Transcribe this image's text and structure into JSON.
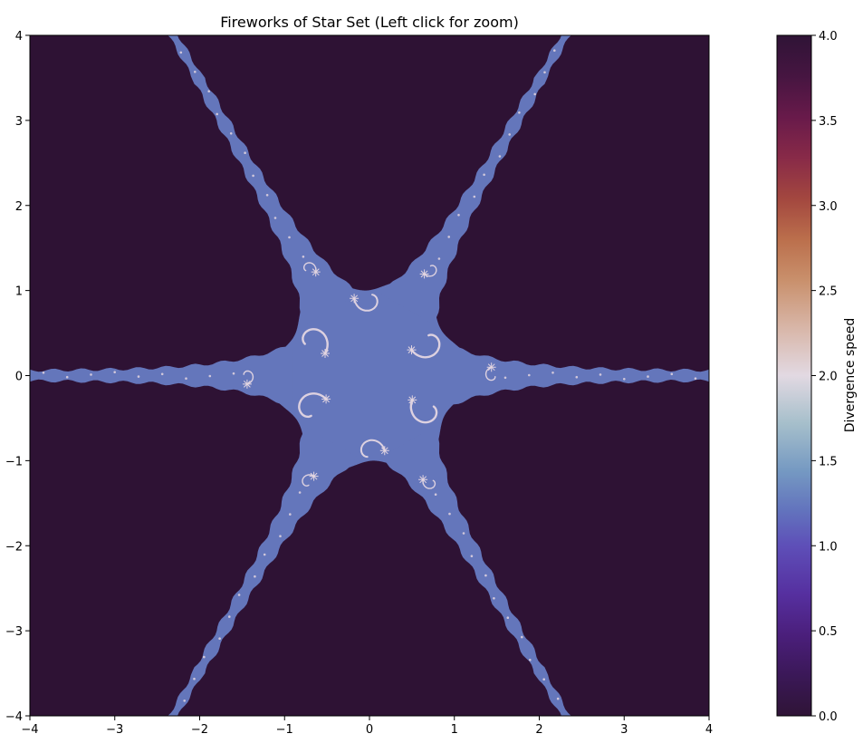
{
  "chart_data": {
    "type": "heatmap",
    "title": "Fireworks of Star Set (Left click for zoom)",
    "xlabel": "",
    "ylabel": "",
    "xlim": [
      -4,
      4
    ],
    "ylim": [
      -4,
      4
    ],
    "x_ticks": [
      -4,
      -3,
      -2,
      -1,
      0,
      1,
      2,
      3,
      4
    ],
    "y_ticks": [
      -4,
      -3,
      -2,
      -1,
      0,
      1,
      2,
      3,
      4
    ],
    "x_tick_labels": [
      "−4",
      "−3",
      "−2",
      "−1",
      "0",
      "1",
      "2",
      "3",
      "4"
    ],
    "y_tick_labels": [
      "−4",
      "−3",
      "−2",
      "−1",
      "0",
      "1",
      "2",
      "3",
      "4"
    ],
    "grid": false,
    "symmetry": "6-fold star with arms along 0°, 60°, 120°, 180°, 240°, 300°",
    "regions": [
      {
        "name": "background",
        "divergence_speed": 0.0
      },
      {
        "name": "star set",
        "divergence_speed": 1.0
      },
      {
        "name": "filament highlights",
        "divergence_speed": 2.0
      }
    ],
    "colorbar": {
      "label": "Divergence speed",
      "range": [
        0.0,
        4.0
      ],
      "ticks": [
        0.0,
        0.5,
        1.0,
        1.5,
        2.0,
        2.5,
        3.0,
        3.5,
        4.0
      ],
      "tick_labels": [
        "0.0",
        "0.5",
        "1.0",
        "1.5",
        "2.0",
        "2.5",
        "3.0",
        "3.5",
        "4.0"
      ],
      "colormap": "twilight_shifted"
    },
    "colors": {
      "background": "#2e1234",
      "set": "#6476bb",
      "highlight": "#e4d6e1"
    }
  }
}
